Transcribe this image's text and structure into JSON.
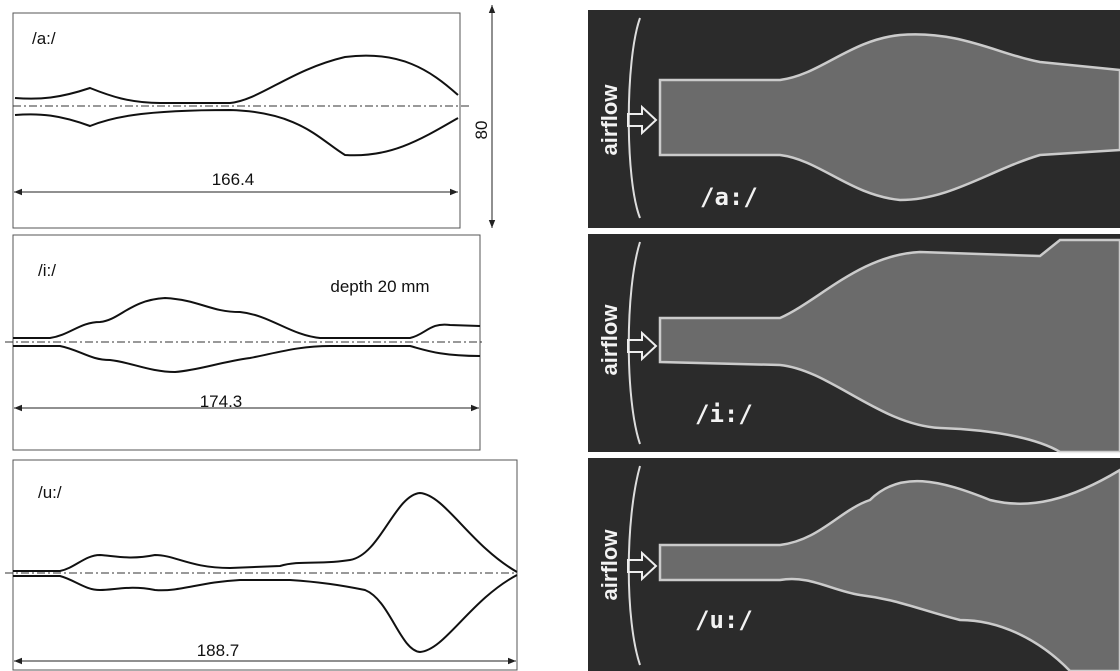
{
  "left_panels": [
    {
      "label": "/a:/",
      "length": "166.4",
      "height": "80"
    },
    {
      "label": "/i:/",
      "note": "depth 20 mm",
      "length": "174.3"
    },
    {
      "label": "/u:/",
      "length": "188.7"
    }
  ],
  "right_panels": [
    {
      "airflow": "airflow",
      "label": "/a:/"
    },
    {
      "airflow": "airflow",
      "label": "/i:/"
    },
    {
      "airflow": "airflow",
      "label": "/u:/"
    }
  ]
}
